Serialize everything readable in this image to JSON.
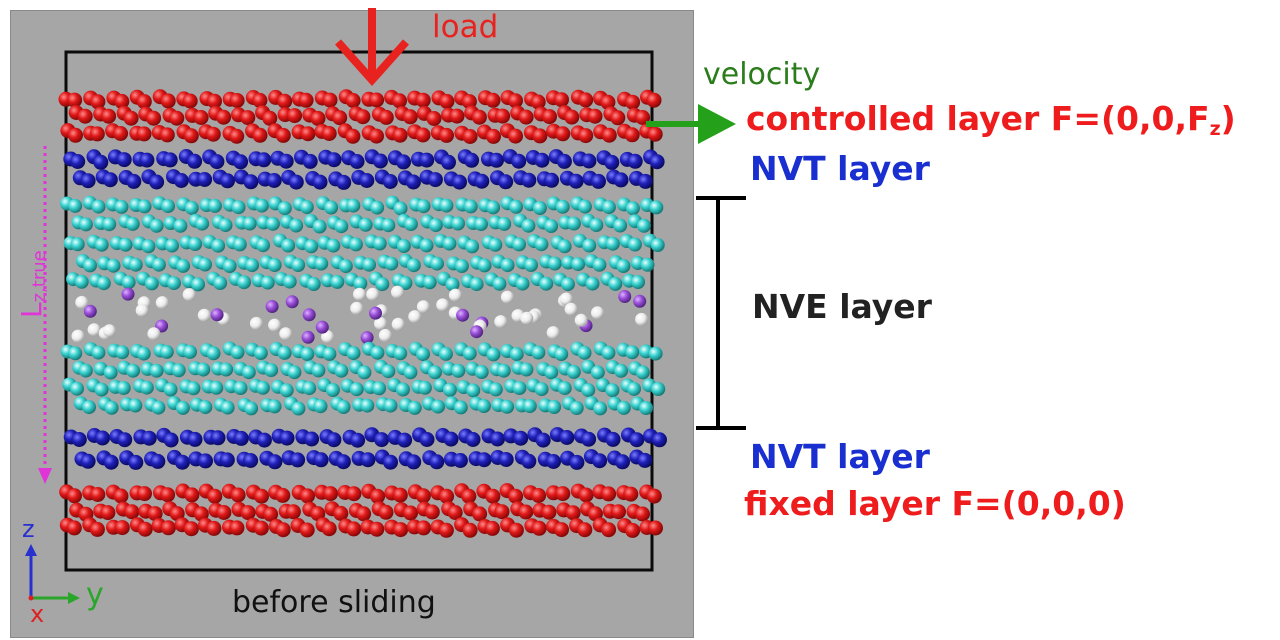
{
  "labels": {
    "load": "load",
    "velocity": "velocity",
    "controlled_layer_prefix": "controlled layer F=(0,0,F",
    "controlled_layer_sub": "z",
    "controlled_layer_suffix": ")",
    "nvt_top": "NVT layer",
    "nve": "NVE layer",
    "nvt_bottom": "NVT layer",
    "fixed_layer": "fixed layer F=(0,0,0)",
    "before_sliding": "before sliding",
    "lz_main": "L",
    "lz_sub": "z,true"
  },
  "axes": {
    "z": "z",
    "y": "y",
    "x": "x"
  },
  "colors": {
    "controlled_layer": "#e01818",
    "nvt_layer": "#1f20b8",
    "nve_layer": "#3ad3d0",
    "interface_white": "#f4f4f4",
    "interface_purple": "#9a4fd8",
    "panel_background": "#a6a6a6",
    "load_arrow": "#e8231f",
    "velocity_arrow": "#24a01a",
    "lz_arrow": "#e033d8"
  },
  "icons": [
    "load-arrow-icon",
    "velocity-arrow-icon",
    "lz-dotted-arrow-icon",
    "nve-bracket-icon",
    "axis-triad-icon"
  ]
}
